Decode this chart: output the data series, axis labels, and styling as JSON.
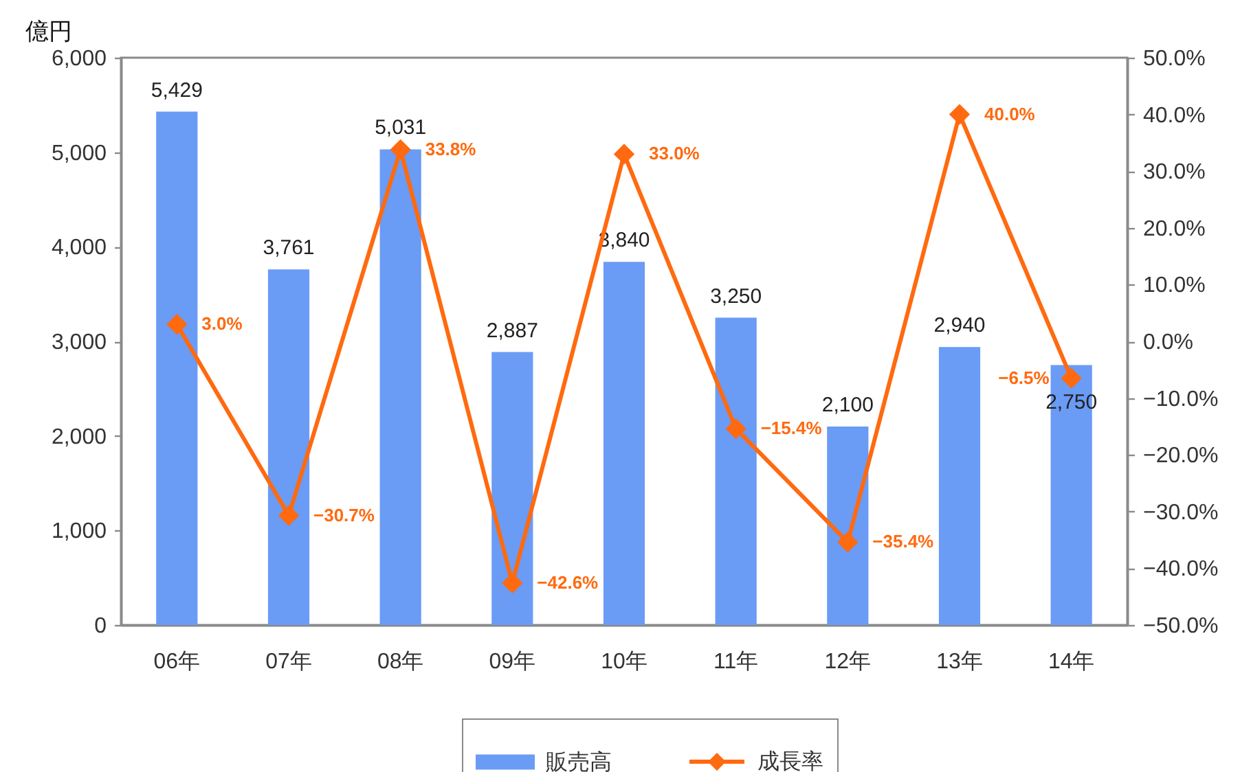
{
  "chart_data": {
    "type": "bar",
    "ylabel": "億円",
    "categories": [
      "06年",
      "07年",
      "08年",
      "09年",
      "10年",
      "11年",
      "12年",
      "13年",
      "14年"
    ],
    "series": [
      {
        "name": "販売高",
        "color": "#6a9bf5",
        "values": [
          5429,
          3761,
          5031,
          2887,
          3840,
          3250,
          2100,
          2940,
          2750
        ],
        "value_labels": [
          "5,429",
          "3,761",
          "5,031",
          "2,887",
          "3,840",
          "3,250",
          "2,100",
          "2,940",
          "2,750"
        ]
      },
      {
        "name": "成長率",
        "type": "line",
        "axis": "y2",
        "color": "#ff6a10",
        "values": [
          3.0,
          -30.7,
          33.8,
          -42.6,
          33.0,
          -15.4,
          -35.4,
          40.0,
          -6.5
        ],
        "value_labels": [
          "3.0%",
          "−30.7%",
          "33.8%",
          "−42.6%",
          "33.0%",
          "−15.4%",
          "−35.4%",
          "40.0%",
          "−6.5%"
        ]
      }
    ],
    "ylim": [
      0,
      6000
    ],
    "yticks": [
      0,
      {
        "value": 1000,
        "label": "1,000"
      },
      {
        "value": 2000,
        "label": "2,000"
      },
      {
        "value": 3000,
        "label": "3,000"
      },
      {
        "value": 4000,
        "label": "4,000"
      },
      {
        "value": 5000,
        "label": "5,000"
      },
      {
        "value": 6000,
        "label": "6,000"
      }
    ],
    "y2lim": [
      -50,
      50
    ],
    "y2ticks": [
      {
        "value": -50,
        "label": "−50.0%"
      },
      {
        "value": -40,
        "label": "−40.0%"
      },
      {
        "value": -30,
        "label": "−30.0%"
      },
      {
        "value": -20,
        "label": "−20.0%"
      },
      {
        "value": -10,
        "label": "−10.0%"
      },
      {
        "value": 0,
        "label": "0.0%"
      },
      {
        "value": 10,
        "label": "10.0%"
      },
      {
        "value": 20,
        "label": "20.0%"
      },
      {
        "value": 30,
        "label": "30.0%"
      },
      {
        "value": 40,
        "label": "40.0%"
      },
      {
        "value": 50,
        "label": "50.0%"
      }
    ],
    "legend": "bottom",
    "marker": "diamond"
  }
}
